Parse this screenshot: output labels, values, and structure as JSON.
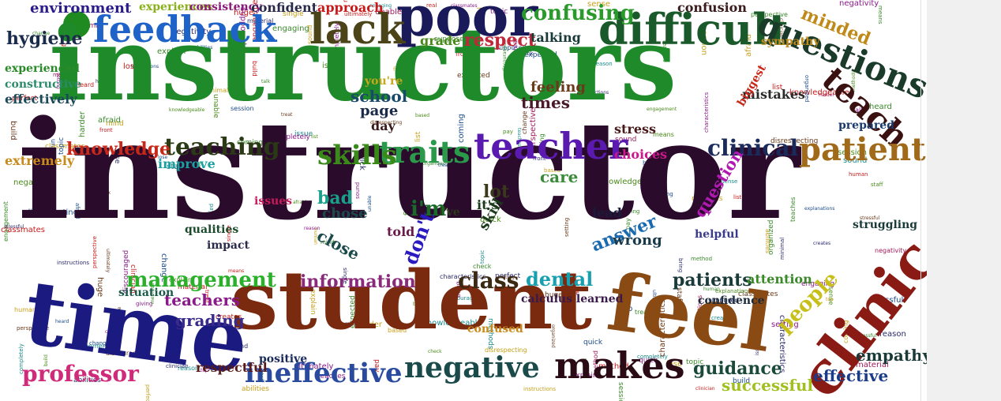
{
  "colors": {
    "dark_purple": "#2b0a2e",
    "green": "#1f8a2a",
    "blue": "#1f5fc8",
    "navy": "#1a1a7a",
    "brown": "#7a2e10",
    "olive": "#4a4a14",
    "crimson": "#9a1a1a",
    "pink": "#e0306a",
    "teal": "#18a09a",
    "violet": "#6a2ab0",
    "gold": "#c8a020",
    "orange": "#d05a10"
  },
  "words": [
    {
      "id": "instructor",
      "text": "instructor",
      "color": "#2a0b2c"
    },
    {
      "id": "instructors",
      "text": "instructors",
      "color": "#1f8a2a"
    },
    {
      "id": "student",
      "text": "student",
      "color": "#7a2a0e"
    },
    {
      "id": "time",
      "text": "time",
      "color": "#1a1a80"
    },
    {
      "id": "feel",
      "text": "feel",
      "color": "#8a4a14"
    },
    {
      "id": "clinic",
      "text": "clinic",
      "color": "#8a1a14"
    },
    {
      "id": "poor",
      "text": "poor",
      "color": "#1a1a5a"
    },
    {
      "id": "feedback",
      "text": "feedback",
      "color": "#1f62c8"
    },
    {
      "id": "difficult",
      "text": "difficult",
      "color": "#1a5a2a"
    },
    {
      "id": "lack",
      "text": "lack",
      "color": "#4a4418"
    },
    {
      "id": "questions",
      "text": "questions",
      "color": "#1a3a2a"
    },
    {
      "id": "teach",
      "text": "teach",
      "color": "#3a1010"
    },
    {
      "id": "teacher",
      "text": "teacher",
      "color": "#5a1ab0"
    },
    {
      "id": "traits",
      "text": "traits",
      "color": "#2a9a4a"
    },
    {
      "id": "skills",
      "text": "skills",
      "color": "#3a8a1a"
    },
    {
      "id": "patient",
      "text": "patient",
      "color": "#a06a1a"
    },
    {
      "id": "clinical",
      "text": "clinical",
      "color": "#1a2a5a"
    },
    {
      "id": "teaching",
      "text": "teaching",
      "color": "#2a3a14"
    },
    {
      "id": "knowledge",
      "text": "knowledge",
      "color": "#c8281a"
    },
    {
      "id": "makes",
      "text": "makes",
      "color": "#2a0a14"
    },
    {
      "id": "negative",
      "text": "negative",
      "color": "#1a4a4a"
    },
    {
      "id": "ineffective",
      "text": "ineffective",
      "color": "#2a4aa0"
    },
    {
      "id": "professor",
      "text": "professor",
      "color": "#d02a7a"
    },
    {
      "id": "management",
      "text": "management",
      "color": "#2ab02a"
    },
    {
      "id": "information",
      "text": "information",
      "color": "#8a2a7a"
    },
    {
      "id": "class",
      "text": "class",
      "color": "#3a2a14"
    },
    {
      "id": "dental",
      "text": "dental",
      "color": "#18a0b0"
    },
    {
      "id": "patients",
      "text": "patients",
      "color": "#1a3a3a"
    },
    {
      "id": "people",
      "text": "people",
      "color": "#c8c01a"
    },
    {
      "id": "guidance",
      "text": "guidance",
      "color": "#1a4a3a"
    },
    {
      "id": "effective",
      "text": "effective",
      "color": "#1a3a8a"
    },
    {
      "id": "empathy",
      "text": "empathy",
      "color": "#1a3a3a"
    },
    {
      "id": "successful",
      "text": "successful",
      "color": "#a0c020"
    },
    {
      "id": "confusing",
      "text": "confusing",
      "color": "#2a9a2a"
    },
    {
      "id": "respect",
      "text": "respect",
      "color": "#c0283a"
    },
    {
      "id": "minded",
      "text": "minded",
      "color": "#c08a1a"
    },
    {
      "id": "hygiene",
      "text": "hygiene",
      "color": "#1a2a4a"
    },
    {
      "id": "environment",
      "text": "environment",
      "color": "#2a1a8a"
    },
    {
      "id": "experiences",
      "text": "experiences",
      "color": "#8ab01a"
    },
    {
      "id": "consistency",
      "text": "consistency",
      "color": "#8a1a7a"
    },
    {
      "id": "confident",
      "text": "confident",
      "color": "#2a2a4a"
    },
    {
      "id": "approach",
      "text": "approach",
      "color": "#c81a1a"
    },
    {
      "id": "confusion",
      "text": "confusion",
      "color": "#3a1a1a"
    },
    {
      "id": "grade",
      "text": "grade",
      "color": "#4a8a1a"
    },
    {
      "id": "talking",
      "text": "talking",
      "color": "#1a3a3a"
    },
    {
      "id": "experienced",
      "text": "experienced",
      "color": "#2a8a2a"
    },
    {
      "id": "constructive",
      "text": "constructive",
      "color": "#2a8a6a"
    },
    {
      "id": "effectively",
      "text": "effectively",
      "color": "#1a4a5a"
    },
    {
      "id": "school",
      "text": "school",
      "color": "#1a4a6a"
    },
    {
      "id": "page",
      "text": "page",
      "color": "#1a2a4a"
    },
    {
      "id": "feeling",
      "text": "feeling",
      "color": "#6a3a1a"
    },
    {
      "id": "times",
      "text": "times",
      "color": "#4a1a2a"
    },
    {
      "id": "extremely",
      "text": "extremely",
      "color": "#c88a1a"
    },
    {
      "id": "improve",
      "text": "improve",
      "color": "#1aa0a0"
    },
    {
      "id": "choices",
      "text": "choices",
      "color": "#c81a8a"
    },
    {
      "id": "bad",
      "text": "bad",
      "color": "#1aa08a"
    },
    {
      "id": "chose",
      "text": "chose",
      "color": "#1a4a4a"
    },
    {
      "id": "close",
      "text": "close",
      "color": "#1a4a4a"
    },
    {
      "id": "im",
      "text": "i'm",
      "color": "#1a6a2a"
    },
    {
      "id": "lot",
      "text": "lot",
      "color": "#3a3a1a"
    },
    {
      "id": "care",
      "text": "care",
      "color": "#3a8a3a"
    },
    {
      "id": "dont",
      "text": "don't",
      "color": "#2a1ac0"
    },
    {
      "id": "told",
      "text": "told",
      "color": "#6a1a4a"
    },
    {
      "id": "answer",
      "text": "answer",
      "color": "#1a6ab0"
    },
    {
      "id": "wrong",
      "text": "wrong",
      "color": "#1a3a4a"
    },
    {
      "id": "lead",
      "text": "lead",
      "color": "#1a1a3a"
    },
    {
      "id": "question",
      "text": "question",
      "color": "#b01ab0"
    },
    {
      "id": "attention",
      "text": "attention",
      "color": "#3a8a2a"
    },
    {
      "id": "teachers",
      "text": "teachers",
      "color": "#8a1a8a"
    },
    {
      "id": "grading",
      "text": "grading",
      "color": "#3a2a8a"
    },
    {
      "id": "situation",
      "text": "situation",
      "color": "#1a5a4a"
    },
    {
      "id": "qualities",
      "text": "qualities",
      "color": "#1a4a2a"
    },
    {
      "id": "impact",
      "text": "impact",
      "color": "#2a2a4a"
    },
    {
      "id": "respectful",
      "text": "respectful",
      "color": "#5a1a1a"
    },
    {
      "id": "positive",
      "text": "positive",
      "color": "#1a2a5a"
    },
    {
      "id": "mistakes",
      "text": "mistakes",
      "color": "#2a2a2a"
    },
    {
      "id": "struggling",
      "text": "struggling",
      "color": "#1a3a3a"
    },
    {
      "id": "helpful",
      "text": "helpful",
      "color": "#3a3a8a"
    },
    {
      "id": "prepared",
      "text": "prepared",
      "color": "#1a3a6a"
    },
    {
      "id": "stress",
      "text": "stress",
      "color": "#4a1a1a"
    },
    {
      "id": "sympathy",
      "text": "sympathy",
      "color": "#c08a1a"
    },
    {
      "id": "skill",
      "text": "skill",
      "color": "#1a3a1a"
    },
    {
      "id": "issues",
      "text": "issues",
      "color": "#c81a5a"
    },
    {
      "id": "biggest",
      "text": "biggest",
      "color": "#c8281a"
    },
    {
      "id": "youre",
      "text": "you're",
      "color": "#c8a81a"
    },
    {
      "id": "day",
      "text": "day",
      "color": "#3a1a1a"
    },
    {
      "id": "confidence",
      "text": "confidence",
      "color": "#1a2a3a"
    },
    {
      "id": "calculus",
      "text": "calculus learned",
      "color": "#3a1a4a"
    },
    {
      "id": "confused",
      "text": "confused",
      "color": "#c88a1a"
    },
    {
      "id": "ive",
      "text": "i've",
      "color": "#2a3a1a"
    },
    {
      "id": "its",
      "text": "it's",
      "color": "#1a3a1a"
    }
  ],
  "filler_words": [
    "supposed",
    "engagement",
    "method",
    "reason",
    "build",
    "staff",
    "perfect",
    "giving",
    "harder",
    "front",
    "sense",
    "explain",
    "based",
    "treat",
    "material",
    "topic",
    "single",
    "human",
    "abilities",
    "huge",
    "quick",
    "change",
    "afraid",
    "unable",
    "expected",
    "organized",
    "means",
    "coming",
    "setting",
    "minimal",
    "discouraged",
    "knowledgeable",
    "characteristics",
    "negativity",
    "stressful",
    "methods",
    "classmates",
    "clinician",
    "completely",
    "instructions",
    "perspective",
    "teaches",
    "sound",
    "explanations",
    "ultimately",
    "disrespecting",
    "engaging",
    "session",
    "heard",
    "talk",
    "creates",
    "check",
    "issue",
    "mind",
    "bring",
    "lose",
    "top",
    "list",
    "real",
    "pay"
  ]
}
